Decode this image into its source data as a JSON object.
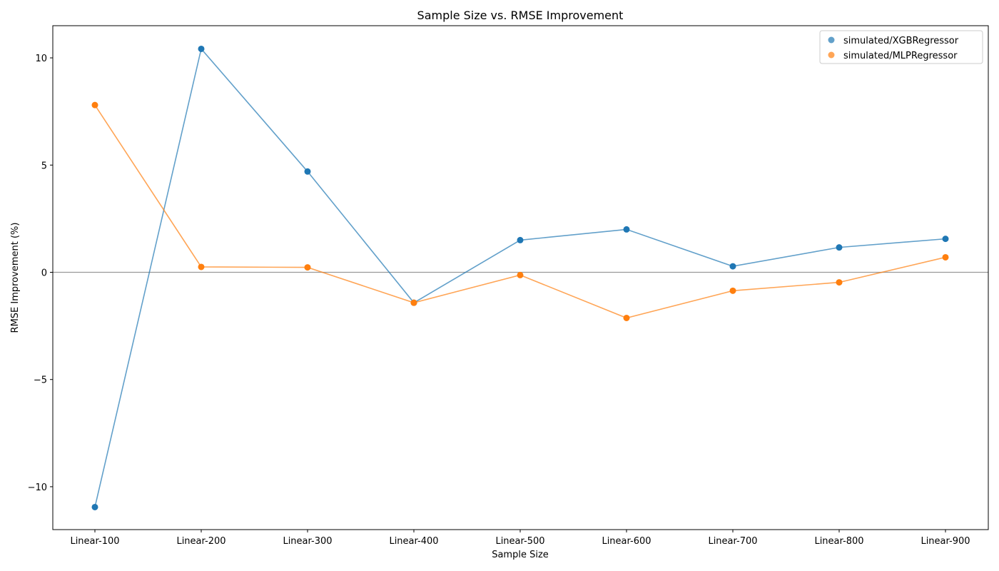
{
  "chart_data": {
    "type": "line",
    "title": "Sample Size vs. RMSE Improvement",
    "xlabel": "Sample Size",
    "ylabel": "RMSE Improvement (%)",
    "categories": [
      "Linear-100",
      "Linear-200",
      "Linear-300",
      "Linear-400",
      "Linear-500",
      "Linear-600",
      "Linear-700",
      "Linear-800",
      "Linear-900"
    ],
    "ylim": [
      -12.0,
      11.5
    ],
    "yticks": [
      -10,
      -5,
      0,
      5,
      10
    ],
    "ytick_labels": [
      "−10",
      "−5",
      "0",
      "5",
      "10"
    ],
    "reference_line": 0,
    "grid": false,
    "legend_position": "top-right",
    "series": [
      {
        "name": "simulated/XGBRegressor",
        "color": "#1f77b4",
        "values": [
          -10.95,
          10.42,
          4.7,
          -1.42,
          1.5,
          2.0,
          0.28,
          1.16,
          1.56
        ]
      },
      {
        "name": "simulated/MLPRegressor",
        "color": "#ff7f0e",
        "values": [
          7.8,
          0.25,
          0.23,
          -1.42,
          -0.13,
          -2.13,
          -0.86,
          -0.47,
          0.7
        ]
      }
    ]
  }
}
